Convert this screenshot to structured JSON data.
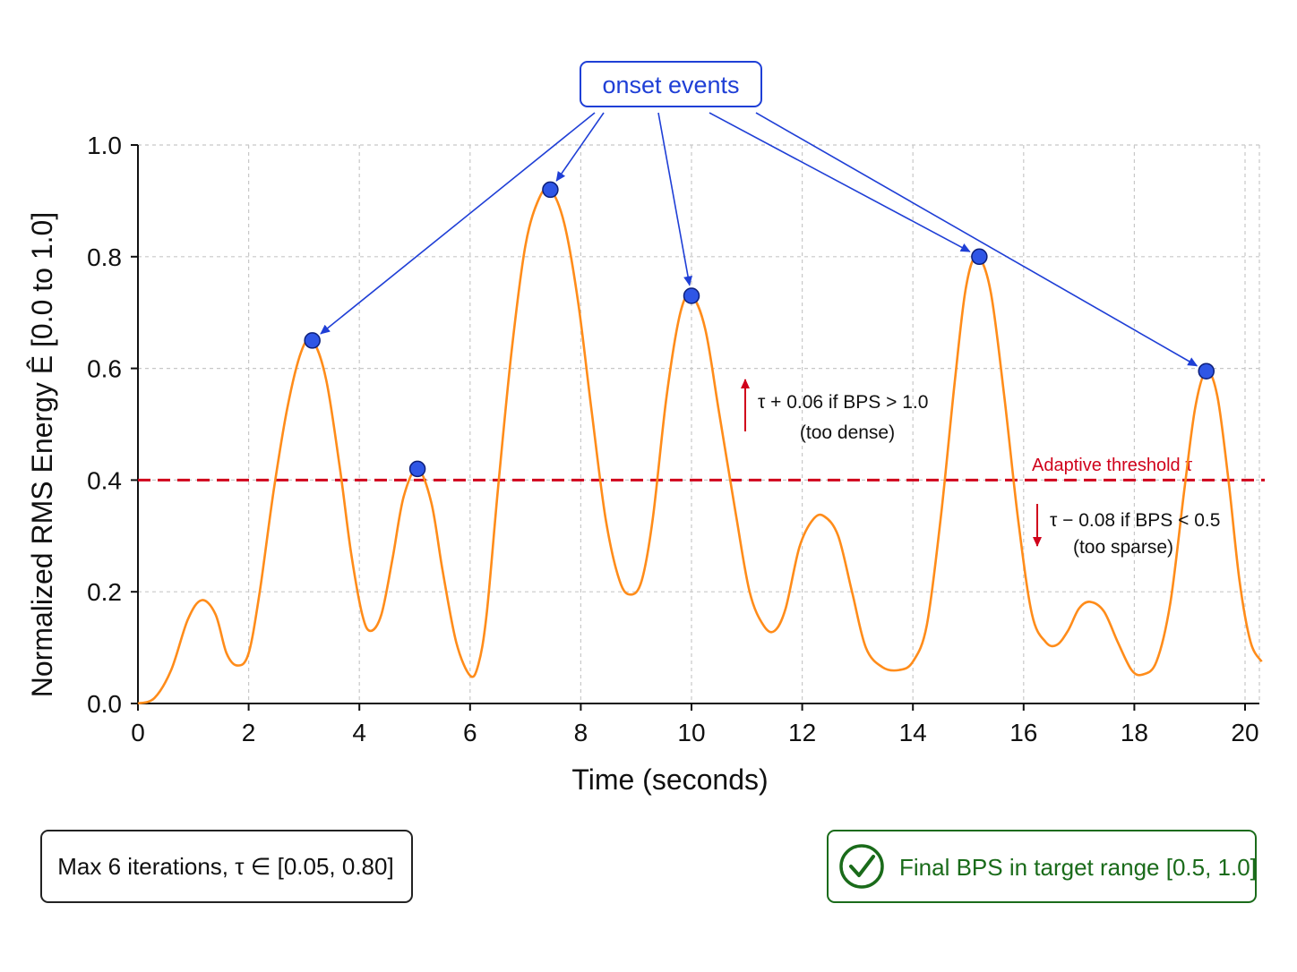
{
  "chart_data": {
    "type": "line",
    "title": "",
    "xlabel": "Time (seconds)",
    "ylabel": "Normalized RMS Energy Ê [0.0 to 1.0]",
    "xlim": [
      0,
      20.3
    ],
    "ylim": [
      0,
      1.0
    ],
    "grid": true,
    "x_ticks": [
      0,
      2,
      4,
      6,
      8,
      10,
      12,
      14,
      16,
      18,
      20
    ],
    "y_ticks": [
      "0.0",
      "0.2",
      "0.4",
      "0.6",
      "0.8",
      "1.0"
    ],
    "series": [
      {
        "color": "#ff8c1a",
        "points": [
          [
            0.0,
            0.0
          ],
          [
            0.3,
            0.01
          ],
          [
            0.6,
            0.06
          ],
          [
            0.9,
            0.15
          ],
          [
            1.15,
            0.185
          ],
          [
            1.4,
            0.16
          ],
          [
            1.6,
            0.09
          ],
          [
            1.8,
            0.068
          ],
          [
            2.0,
            0.09
          ],
          [
            2.2,
            0.2
          ],
          [
            2.45,
            0.38
          ],
          [
            2.7,
            0.53
          ],
          [
            2.95,
            0.63
          ],
          [
            3.15,
            0.65
          ],
          [
            3.4,
            0.58
          ],
          [
            3.65,
            0.42
          ],
          [
            3.85,
            0.27
          ],
          [
            4.05,
            0.16
          ],
          [
            4.2,
            0.13
          ],
          [
            4.4,
            0.16
          ],
          [
            4.6,
            0.26
          ],
          [
            4.8,
            0.37
          ],
          [
            5.05,
            0.42
          ],
          [
            5.3,
            0.36
          ],
          [
            5.5,
            0.24
          ],
          [
            5.75,
            0.11
          ],
          [
            6.0,
            0.05
          ],
          [
            6.15,
            0.07
          ],
          [
            6.3,
            0.16
          ],
          [
            6.5,
            0.38
          ],
          [
            6.75,
            0.63
          ],
          [
            7.0,
            0.82
          ],
          [
            7.25,
            0.905
          ],
          [
            7.45,
            0.92
          ],
          [
            7.7,
            0.86
          ],
          [
            7.95,
            0.72
          ],
          [
            8.2,
            0.52
          ],
          [
            8.45,
            0.33
          ],
          [
            8.7,
            0.22
          ],
          [
            8.9,
            0.195
          ],
          [
            9.1,
            0.22
          ],
          [
            9.3,
            0.33
          ],
          [
            9.55,
            0.55
          ],
          [
            9.8,
            0.7
          ],
          [
            10.0,
            0.73
          ],
          [
            10.25,
            0.67
          ],
          [
            10.5,
            0.52
          ],
          [
            10.8,
            0.34
          ],
          [
            11.05,
            0.2
          ],
          [
            11.3,
            0.14
          ],
          [
            11.5,
            0.13
          ],
          [
            11.7,
            0.17
          ],
          [
            11.95,
            0.28
          ],
          [
            12.2,
            0.33
          ],
          [
            12.4,
            0.335
          ],
          [
            12.65,
            0.3
          ],
          [
            12.9,
            0.2
          ],
          [
            13.15,
            0.1
          ],
          [
            13.45,
            0.065
          ],
          [
            13.75,
            0.06
          ],
          [
            14.0,
            0.075
          ],
          [
            14.25,
            0.14
          ],
          [
            14.5,
            0.33
          ],
          [
            14.75,
            0.57
          ],
          [
            14.95,
            0.74
          ],
          [
            15.15,
            0.8
          ],
          [
            15.4,
            0.74
          ],
          [
            15.65,
            0.55
          ],
          [
            15.9,
            0.33
          ],
          [
            16.15,
            0.16
          ],
          [
            16.4,
            0.11
          ],
          [
            16.6,
            0.105
          ],
          [
            16.8,
            0.13
          ],
          [
            17.0,
            0.17
          ],
          [
            17.2,
            0.182
          ],
          [
            17.45,
            0.165
          ],
          [
            17.7,
            0.11
          ],
          [
            17.95,
            0.06
          ],
          [
            18.15,
            0.052
          ],
          [
            18.4,
            0.075
          ],
          [
            18.65,
            0.18
          ],
          [
            18.9,
            0.38
          ],
          [
            19.1,
            0.53
          ],
          [
            19.3,
            0.595
          ],
          [
            19.5,
            0.55
          ],
          [
            19.7,
            0.4
          ],
          [
            19.9,
            0.22
          ],
          [
            20.1,
            0.11
          ],
          [
            20.3,
            0.075
          ]
        ]
      }
    ],
    "onsets": [
      {
        "x": 3.15,
        "y": 0.65
      },
      {
        "x": 5.05,
        "y": 0.42
      },
      {
        "x": 7.45,
        "y": 0.92
      },
      {
        "x": 10.0,
        "y": 0.73
      },
      {
        "x": 15.2,
        "y": 0.8
      },
      {
        "x": 19.3,
        "y": 0.595
      }
    ],
    "threshold": {
      "value": 0.4,
      "label": "Adaptive threshold τ",
      "color": "#d0021b"
    },
    "callout": {
      "label": "onset events",
      "targets": [
        0,
        2,
        3,
        4,
        5
      ],
      "color": "#1f3fd6"
    },
    "annotations": {
      "increase_rule": "τ + 0.06 if BPS > 1.0",
      "increase_note": "(too dense)",
      "decrease_rule": "τ − 0.08 if BPS < 0.5",
      "decrease_note": "(too sparse)"
    }
  },
  "footer": {
    "iterations_text": "Max 6 iterations, τ ∈ [0.05, 0.80]",
    "status_text": "Final BPS in target range [0.5, 1.0]",
    "status_color": "#1a6b1a",
    "status_icon": "check-circle-icon"
  }
}
